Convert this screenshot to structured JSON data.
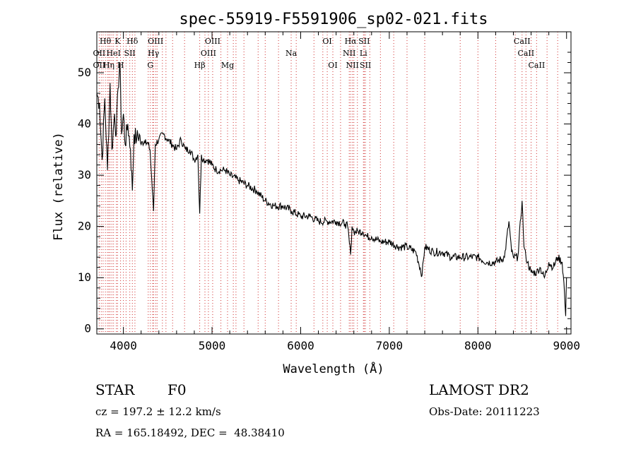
{
  "chart_data": {
    "type": "line",
    "title": "spec-55919-F5591906_sp02-021.fits",
    "xlabel": "Wavelength (Å)",
    "ylabel": "Flux (relative)",
    "xlim": [
      3700,
      9050
    ],
    "ylim": [
      -1,
      58
    ],
    "xticks": [
      4000,
      5000,
      6000,
      7000,
      8000,
      9000
    ],
    "yticks": [
      0,
      10,
      20,
      30,
      40,
      50
    ],
    "grid": false,
    "series": [
      {
        "x": [
          3700,
          3730,
          3760,
          3790,
          3820,
          3850,
          3870,
          3900,
          3920,
          3940,
          3960,
          3980,
          4000,
          4020,
          4050,
          4080,
          4101,
          4120,
          4150,
          4180,
          4200,
          4250,
          4300,
          4320,
          4340,
          4360,
          4400,
          4450,
          4500,
          4550,
          4600,
          4650,
          4700,
          4750,
          4800,
          4840,
          4861,
          4880,
          4900,
          4950,
          5000,
          5050,
          5100,
          5150,
          5200,
          5300,
          5400,
          5500,
          5600,
          5700,
          5800,
          5900,
          6000,
          6100,
          6200,
          6300,
          6400,
          6500,
          6530,
          6563,
          6580,
          6600,
          6650,
          6700,
          6750,
          6800,
          6900,
          7000,
          7100,
          7200,
          7300,
          7370,
          7400,
          7500,
          7600,
          7700,
          7800,
          7900,
          8000,
          8100,
          8200,
          8300,
          8350,
          8380,
          8400,
          8450,
          8498,
          8520,
          8542,
          8560,
          8600,
          8662,
          8700,
          8750,
          8800,
          8850,
          8900,
          8950,
          8970,
          8990,
          9000
        ],
        "y": [
          46,
          44,
          33,
          45,
          31,
          48,
          35,
          42,
          38,
          47,
          52,
          38,
          42,
          36,
          40,
          35,
          27,
          38,
          37,
          38,
          36,
          37,
          35,
          29,
          23,
          36,
          37,
          38,
          37,
          36,
          35,
          37,
          35,
          35,
          33,
          34,
          22.5,
          34,
          33,
          33,
          32,
          31,
          31,
          31,
          30,
          29,
          28,
          27,
          25,
          24,
          24,
          23,
          22,
          22,
          21,
          21,
          21,
          20.5,
          20,
          14.5,
          20,
          19,
          19,
          19,
          18,
          18,
          17,
          17,
          16,
          16,
          15,
          10.5,
          16,
          15,
          15,
          14,
          14,
          14,
          14,
          13,
          13,
          14,
          21,
          15,
          14,
          14,
          25,
          16,
          14,
          13,
          11,
          11,
          12,
          10,
          13,
          12,
          14,
          13,
          9,
          2.5,
          10
        ]
      }
    ],
    "lines_top": [
      {
        "label": "Hθ",
        "wl": 3797
      },
      {
        "label": "K",
        "wl": 3934
      },
      {
        "label": "Hδ",
        "wl": 4101
      },
      {
        "label": "OIII",
        "wl": 4363
      },
      {
        "label": "OIII",
        "wl": 5007
      },
      {
        "label": "OI",
        "wl": 6300
      },
      {
        "label": "Hα",
        "wl": 6563
      },
      {
        "label": "SII",
        "wl": 6717
      },
      {
        "label": "CaII",
        "wl": 8498
      }
    ],
    "lines_mid": [
      {
        "label": "OII",
        "wl": 3727
      },
      {
        "label": "HeI",
        "wl": 3889
      },
      {
        "label": "SII",
        "wl": 4072
      },
      {
        "label": "Hγ",
        "wl": 4340
      },
      {
        "label": "OIII",
        "wl": 4959
      },
      {
        "label": "Na",
        "wl": 5893
      },
      {
        "label": "NII",
        "wl": 6548
      },
      {
        "label": "Li",
        "wl": 6708
      },
      {
        "label": "CaII",
        "wl": 8542
      }
    ],
    "lines_bot": [
      {
        "label": "OII",
        "wl": 3727
      },
      {
        "label": "Hη",
        "wl": 3835
      },
      {
        "label": "H",
        "wl": 3968
      },
      {
        "label": "G",
        "wl": 4304
      },
      {
        "label": "Hβ",
        "wl": 4861
      },
      {
        "label": "Mg",
        "wl": 5175
      },
      {
        "label": "OI",
        "wl": 6363
      },
      {
        "label": "NII",
        "wl": 6584
      },
      {
        "label": "SII",
        "wl": 6731
      },
      {
        "label": "CaII",
        "wl": 8662
      }
    ],
    "extra_guides": [
      3750,
      3771,
      3820,
      3850,
      3870,
      3920,
      4000,
      4030,
      4130,
      4280,
      4330,
      4380,
      4440,
      4480,
      4555,
      4690,
      4920,
      5100,
      5240,
      5270,
      5360,
      5520,
      5600,
      5750,
      5950,
      6150,
      6250,
      6450,
      6600,
      6640,
      6780,
      6900,
      7050,
      7200,
      7400,
      7800,
      8000,
      8200,
      8420,
      8600,
      8780,
      8900
    ],
    "colors": {
      "line": "#000000",
      "guide": "#d03030"
    }
  },
  "info": {
    "object_class": "STAR",
    "subclass": "F0",
    "survey": "LAMOST DR2",
    "cz": "cz = 197.2 ± 12.2 km/s",
    "obs_date": "Obs-Date: 20111223",
    "coords": "RA = 165.18492, DEC =  48.38410"
  }
}
